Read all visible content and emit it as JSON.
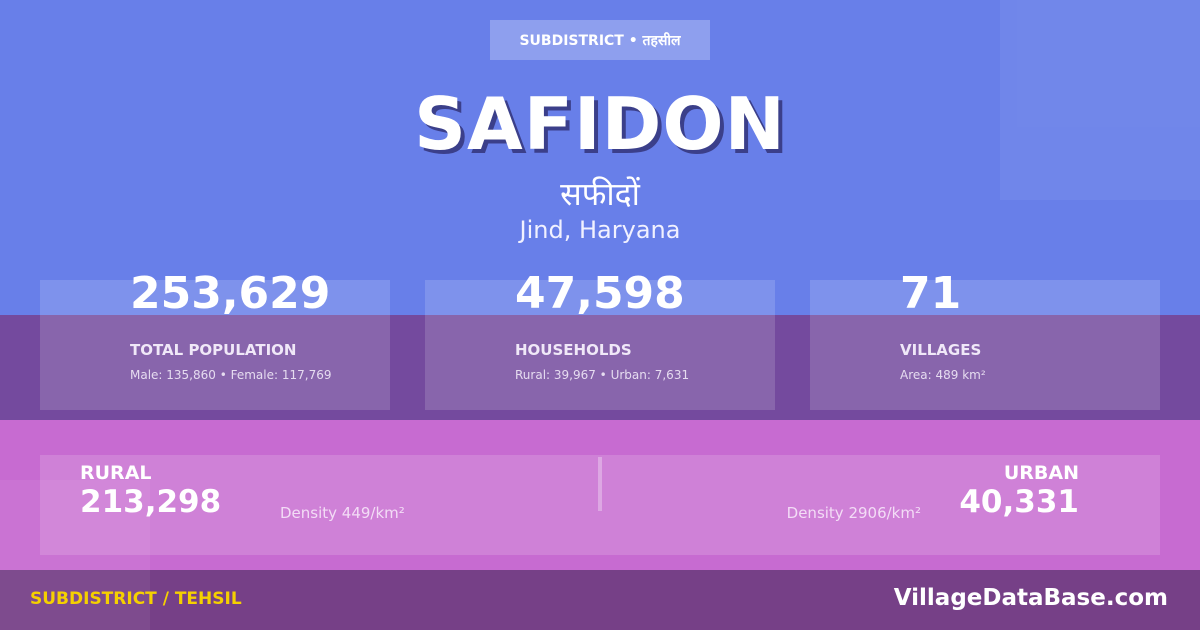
{
  "colors": {
    "top": "#687fe9",
    "stats_band": "#744a9e",
    "rural_urban_band": "#c76bd1",
    "footer": "#764087",
    "footer_label": "#f5d000"
  },
  "badge": "SUBDISTRICT • तहसील",
  "title": "SAFIDON",
  "title_hindi": "सफीदों",
  "location": "Jind, Haryana",
  "stats": [
    {
      "value": "253,629",
      "label": "TOTAL POPULATION",
      "detail": "Male: 135,860 • Female: 117,769"
    },
    {
      "value": "47,598",
      "label": "HOUSEHOLDS",
      "detail": "Rural: 39,967 • Urban: 7,631"
    },
    {
      "value": "71",
      "label": "VILLAGES",
      "detail": "Area: 489 km²"
    }
  ],
  "rural": {
    "label": "RURAL",
    "value": "213,298",
    "density": "Density 449/km²"
  },
  "urban": {
    "label": "URBAN",
    "value": "40,331",
    "density": "Density 2906/km²"
  },
  "footer": {
    "category": "SUBDISTRICT / TEHSIL",
    "site": "VillageDataBase.com"
  }
}
